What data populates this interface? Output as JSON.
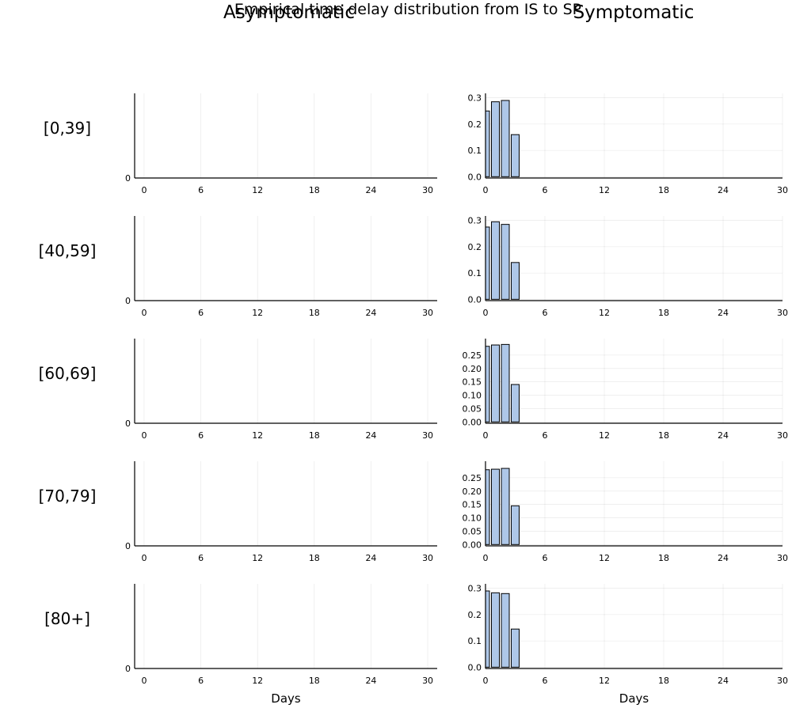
{
  "figure_title": "Empirical time delay distribution from IS to SP",
  "column_titles": [
    "Asymptomatic",
    "Symptomatic"
  ],
  "colors": {
    "bar_fill": "#aec7e8",
    "bar_stroke": "#000000"
  },
  "chart_data": [
    {
      "type": "bar",
      "panel": "Asymptomatic [0,39]",
      "row_label": "[0,39]",
      "x": [],
      "values": [],
      "xlim": [
        -1,
        31
      ],
      "xticks": [
        0,
        6,
        12,
        18,
        24,
        30
      ],
      "yticks": [
        0
      ],
      "xlabel": "",
      "grid": true
    },
    {
      "type": "bar",
      "panel": "Symptomatic [0,39]",
      "x": [
        0,
        1,
        2,
        3
      ],
      "values": [
        0.25,
        0.285,
        0.29,
        0.16
      ],
      "xlim": [
        0,
        30
      ],
      "ylim": [
        -0.005,
        0.305
      ],
      "xticks": [
        0,
        6,
        12,
        18,
        24,
        30
      ],
      "yticks": [
        0.0,
        0.1,
        0.2,
        0.3
      ],
      "xlabel": "",
      "grid": true
    },
    {
      "type": "bar",
      "panel": "Asymptomatic [40,59]",
      "row_label": "[40,59]",
      "x": [],
      "values": [],
      "xlim": [
        -1,
        31
      ],
      "xticks": [
        0,
        6,
        12,
        18,
        24,
        30
      ],
      "yticks": [
        0
      ],
      "xlabel": "",
      "grid": true
    },
    {
      "type": "bar",
      "panel": "Symptomatic [40,59]",
      "x": [
        0,
        1,
        2,
        3
      ],
      "values": [
        0.275,
        0.295,
        0.285,
        0.14
      ],
      "xlim": [
        0,
        30
      ],
      "ylim": [
        -0.005,
        0.305
      ],
      "xticks": [
        0,
        6,
        12,
        18,
        24,
        30
      ],
      "yticks": [
        0.0,
        0.1,
        0.2,
        0.3
      ],
      "xlabel": "",
      "grid": true
    },
    {
      "type": "bar",
      "panel": "Asymptomatic [60,69]",
      "row_label": "[60,69]",
      "x": [],
      "values": [],
      "xlim": [
        -1,
        31
      ],
      "xticks": [
        0,
        6,
        12,
        18,
        24,
        30
      ],
      "yticks": [
        0
      ],
      "xlabel": "",
      "grid": true
    },
    {
      "type": "bar",
      "panel": "Symptomatic [60,69]",
      "x": [
        0,
        1,
        2,
        3
      ],
      "values": [
        0.283,
        0.288,
        0.29,
        0.14
      ],
      "xlim": [
        0,
        30
      ],
      "ylim": [
        -0.005,
        0.3
      ],
      "xticks": [
        0,
        6,
        12,
        18,
        24,
        30
      ],
      "yticks": [
        0.0,
        0.05,
        0.1,
        0.15,
        0.2,
        0.25
      ],
      "ytick_labels": [
        "0.00",
        "0.05",
        "0.10",
        "0.15",
        "0.20",
        "0.25"
      ],
      "xlabel": "",
      "grid": true
    },
    {
      "type": "bar",
      "panel": "Asymptomatic [70,79]",
      "row_label": "[70,79]",
      "x": [],
      "values": [],
      "xlim": [
        -1,
        31
      ],
      "xticks": [
        0,
        6,
        12,
        18,
        24,
        30
      ],
      "yticks": [
        0
      ],
      "xlabel": "",
      "grid": true
    },
    {
      "type": "bar",
      "panel": "Symptomatic [70,79]",
      "x": [
        0,
        1,
        2,
        3
      ],
      "values": [
        0.28,
        0.282,
        0.285,
        0.145
      ],
      "xlim": [
        0,
        30
      ],
      "ylim": [
        -0.005,
        0.3
      ],
      "xticks": [
        0,
        6,
        12,
        18,
        24,
        30
      ],
      "yticks": [
        0.0,
        0.05,
        0.1,
        0.15,
        0.2,
        0.25
      ],
      "ytick_labels": [
        "0.00",
        "0.05",
        "0.10",
        "0.15",
        "0.20",
        "0.25"
      ],
      "xlabel": "",
      "grid": true
    },
    {
      "type": "bar",
      "panel": "Asymptomatic [80+]",
      "row_label": "[80+]",
      "x": [],
      "values": [],
      "xlim": [
        -1,
        31
      ],
      "xticks": [
        0,
        6,
        12,
        18,
        24,
        30
      ],
      "yticks": [
        0
      ],
      "xlabel": "Days",
      "grid": true
    },
    {
      "type": "bar",
      "panel": "Symptomatic [80+]",
      "x": [
        0,
        1,
        2,
        3
      ],
      "values": [
        0.29,
        0.283,
        0.28,
        0.145
      ],
      "xlim": [
        0,
        30
      ],
      "ylim": [
        -0.005,
        0.305
      ],
      "xticks": [
        0,
        6,
        12,
        18,
        24,
        30
      ],
      "yticks": [
        0.0,
        0.1,
        0.2,
        0.3
      ],
      "xlabel": "Days",
      "grid": true
    }
  ]
}
